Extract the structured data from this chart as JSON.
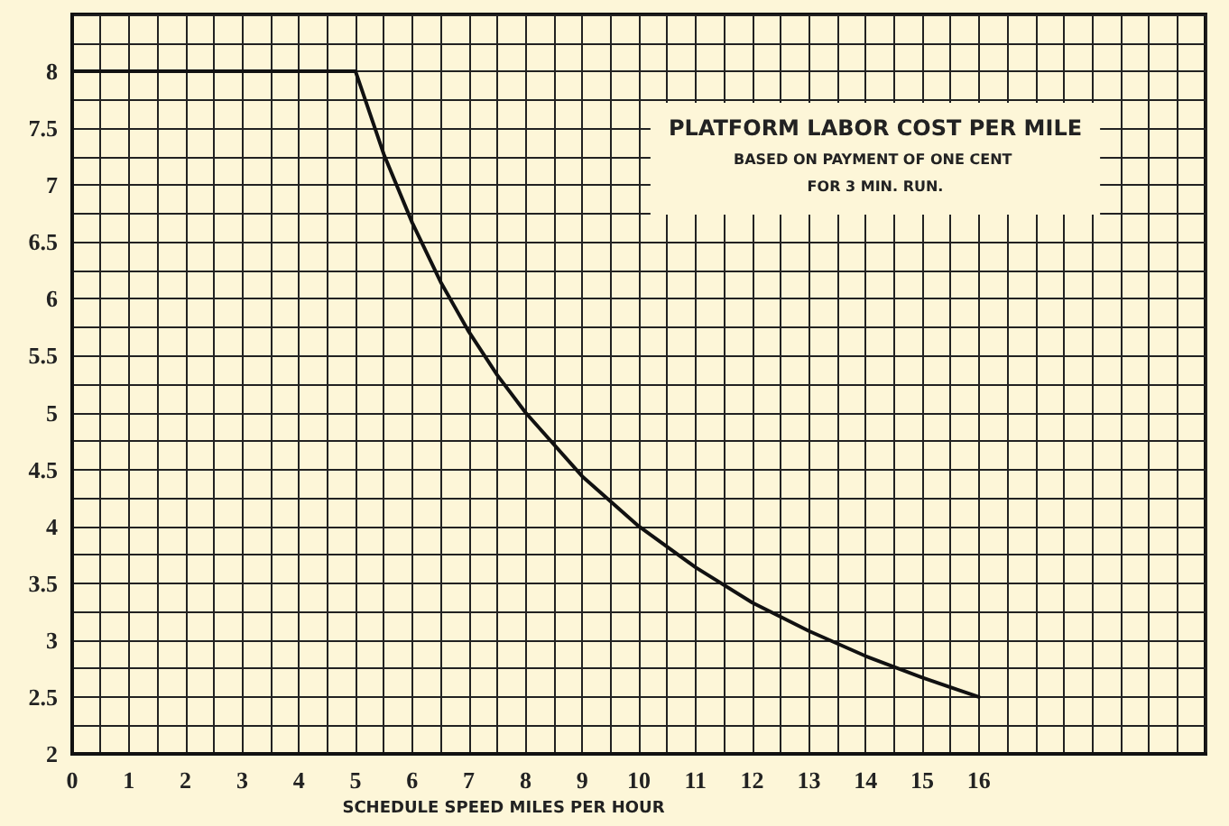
{
  "chart_data": {
    "type": "line",
    "title": "PLATFORM LABOR COST PER MILE",
    "subtitle": "BASED ON PAYMENT OF ONE CENT FOR 3 MIN. RUN.",
    "xlabel": "SCHEDULE SPEED MILES PER HOUR",
    "x": [
      0,
      1,
      2,
      3,
      4,
      5,
      5.5,
      6,
      6.5,
      7,
      7.5,
      8,
      9,
      10,
      11,
      12,
      13,
      14,
      15,
      16
    ],
    "series": [
      {
        "color": "#111111",
        "values": [
          8,
          8,
          8,
          8,
          8,
          8,
          7.27,
          6.67,
          6.15,
          5.71,
          5.33,
          5,
          4.44,
          4,
          3.64,
          3.33,
          3.08,
          2.86,
          2.67,
          2.5
        ]
      }
    ],
    "xlim": [
      0,
      20
    ],
    "xticks": [
      0,
      {
        "value": 0.5,
        "label": null
      },
      1,
      {
        "value": 1.5,
        "label": null
      },
      2,
      {
        "value": 2.5,
        "label": null
      },
      3,
      {
        "value": 3.5,
        "label": null
      },
      4,
      {
        "value": 4.5,
        "label": null
      },
      5,
      {
        "value": 5.5,
        "label": null
      },
      6,
      {
        "value": 6.5,
        "label": null
      },
      7,
      {
        "value": 7.5,
        "label": null
      },
      8,
      {
        "value": 8.5,
        "label": null
      },
      9,
      {
        "value": 9.5,
        "label": null
      },
      10,
      {
        "value": 10.5,
        "label": null
      },
      11,
      {
        "value": 11.5,
        "label": null
      },
      12,
      {
        "value": 12.5,
        "label": null
      },
      13,
      {
        "value": 13.5,
        "label": null
      },
      14,
      {
        "value": 14.5,
        "label": null
      },
      15,
      {
        "value": 15.5,
        "label": null
      },
      16,
      {
        "value": 16.5,
        "label": null
      },
      {
        "value": 17,
        "label": null
      },
      {
        "value": 17.5,
        "label": null
      },
      {
        "value": 18,
        "label": null
      },
      {
        "value": 18.5,
        "label": null
      },
      {
        "value": 19,
        "label": null
      },
      {
        "value": 19.5,
        "label": null
      },
      {
        "value": 20,
        "label": null
      }
    ],
    "ylim": [
      2,
      8.5
    ],
    "yticks": [
      2,
      {
        "value": 2.25,
        "label": null
      },
      2.5,
      {
        "value": 2.75,
        "label": null
      },
      3,
      {
        "value": 3.25,
        "label": null
      },
      3.5,
      {
        "value": 3.75,
        "label": null
      },
      4,
      {
        "value": 4.25,
        "label": null
      },
      4.5,
      {
        "value": 4.75,
        "label": null
      },
      5,
      {
        "value": 5.25,
        "label": null
      },
      5.5,
      {
        "value": 5.75,
        "label": null
      },
      6,
      {
        "value": 6.25,
        "label": null
      },
      6.5,
      {
        "value": 6.75,
        "label": null
      },
      7,
      {
        "value": 7.25,
        "label": null
      },
      7.5,
      {
        "value": 7.75,
        "label": null
      },
      8,
      {
        "value": 8.25,
        "label": null
      },
      {
        "value": 8.5,
        "label": null
      }
    ],
    "grid": true,
    "marker": "none",
    "line_style": "solid"
  }
}
